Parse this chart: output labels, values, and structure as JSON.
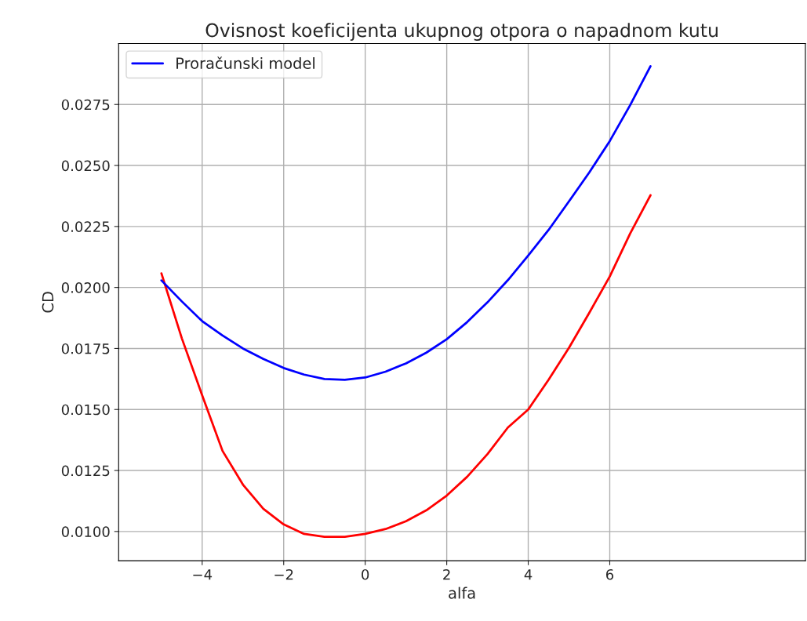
{
  "chart_data": {
    "type": "line",
    "title": "Ovisnost koeficijenta ukupnog otpora o napadnom kutu",
    "xlabel": "alfa",
    "ylabel": "CD",
    "xlim": [
      -6.05,
      10.8
    ],
    "xticks": [
      {
        "value": -4,
        "label": "−4"
      },
      {
        "value": -2,
        "label": "−2"
      },
      0,
      2,
      4,
      6
    ],
    "ylim": [
      0.0088,
      0.03
    ],
    "yticks": [
      {
        "value": 0.01,
        "label": "0.0100"
      },
      {
        "value": 0.0125,
        "label": "0.0125"
      },
      {
        "value": 0.015,
        "label": "0.0150"
      },
      {
        "value": 0.0175,
        "label": "0.0175"
      },
      {
        "value": 0.02,
        "label": "0.0200"
      },
      {
        "value": 0.0225,
        "label": "0.0225"
      },
      {
        "value": 0.025,
        "label": "0.0250"
      },
      {
        "value": 0.0275,
        "label": "0.0275"
      }
    ],
    "grid": true,
    "legend": "top left",
    "x": [
      -5,
      -4.5,
      -4,
      -3.5,
      -3,
      -2.5,
      -2,
      -1.5,
      -1,
      -0.5,
      0,
      0.5,
      1,
      1.5,
      2,
      2.5,
      3,
      3.5,
      4,
      4.5,
      5,
      5.5,
      6,
      6.5,
      7
    ],
    "series": [
      {
        "color": "#ff0000",
        "values": [
          0.02058,
          0.01792,
          0.01558,
          0.0133,
          0.01192,
          0.01093,
          0.01029,
          0.0099,
          0.00978,
          0.00978,
          0.0099,
          0.0101,
          0.01042,
          0.01087,
          0.01147,
          0.01224,
          0.01317,
          0.01426,
          0.015,
          0.01622,
          0.01753,
          0.01897,
          0.02045,
          0.02221,
          0.02378
        ]
      },
      {
        "name": "Proračunski model",
        "color": "#0000ff",
        "values": [
          0.02029,
          0.01943,
          0.01862,
          0.01803,
          0.0175,
          0.01707,
          0.0167,
          0.01643,
          0.01625,
          0.01622,
          0.01631,
          0.01655,
          0.01689,
          0.01733,
          0.01788,
          0.01858,
          0.01939,
          0.0203,
          0.02131,
          0.02236,
          0.02353,
          0.02472,
          0.026,
          0.02747,
          0.02907
        ]
      }
    ]
  }
}
